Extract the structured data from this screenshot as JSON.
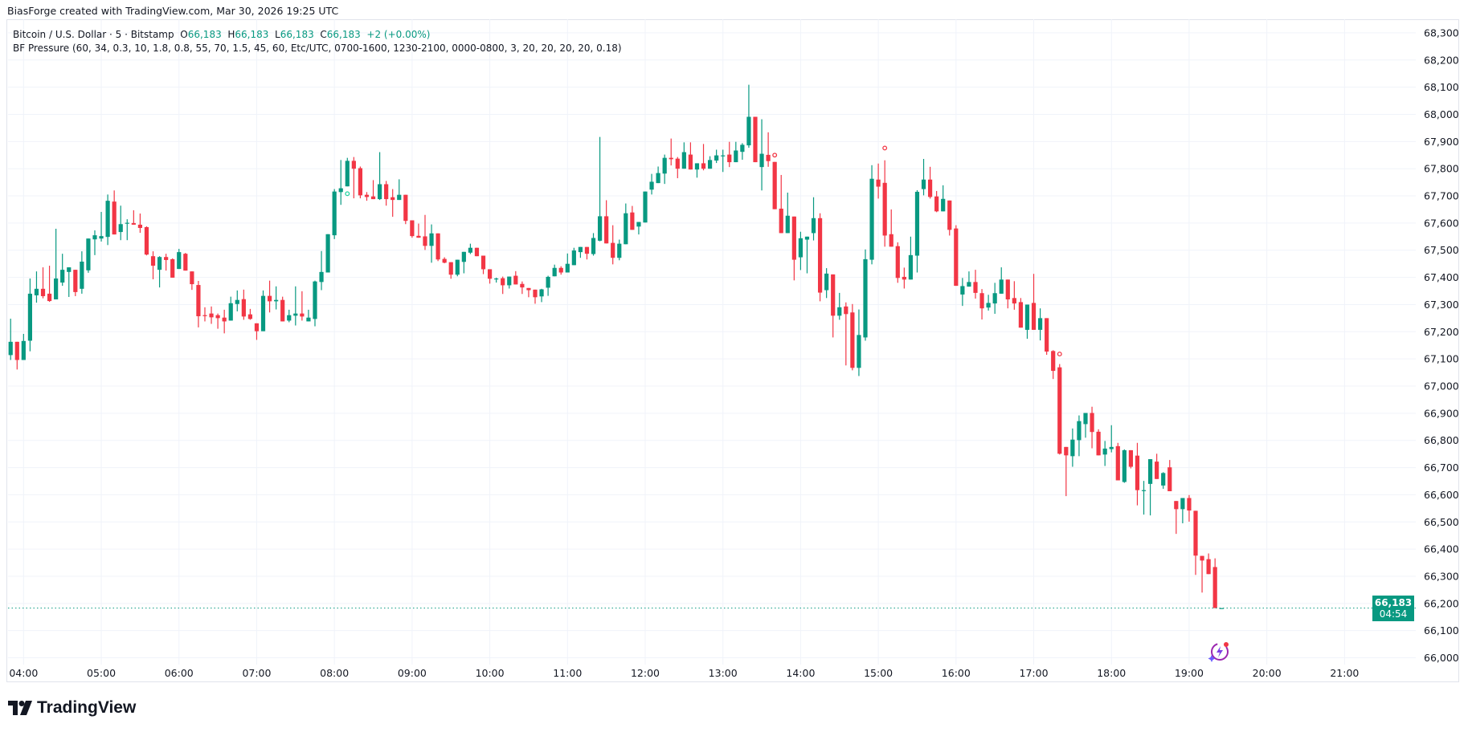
{
  "attribution": "BiasForge created with TradingView.com, Mar 30, 2026 19:25 UTC",
  "legend": {
    "symbol": "Bitcoin / U.S. Dollar · 5 · Bitstamp",
    "o_label": "O",
    "o_value": "66,183",
    "h_label": "H",
    "h_value": "66,183",
    "l_label": "L",
    "l_value": "66,183",
    "c_label": "C",
    "c_value": "66,183",
    "change": "+2 (+0.00%)",
    "indicator": "BF Pressure (60, 34, 0.3, 10, 1.8, 0.8, 55, 70, 1.5, 45, 60, Etc/UTC, 0700-1600, 1230-2100, 0000-0800, 3, 20, 20, 20, 20, 0.18)"
  },
  "last_price": {
    "label": "66,183",
    "countdown": "04:54",
    "value": 66183
  },
  "logo": {
    "text": "TradingView"
  },
  "colors": {
    "up": "#089981",
    "down": "#f23645",
    "grid": "#f0f3fa",
    "marker_up": "#22d3a0",
    "marker_down": "#f23645",
    "ai_icon": "#9c27b0"
  },
  "icons": {
    "ai_assistant": "lightning-sparkle-icon",
    "logo": "tradingview-logo-icon"
  },
  "chart_data": {
    "type": "candlestick",
    "title": "Bitcoin / U.S. Dollar · 5 · Bitstamp",
    "interval_minutes": 5,
    "grid": true,
    "y_range": [
      65975,
      68350
    ],
    "x_range": [
      "03:48",
      "21:55"
    ],
    "y_ticks": [
      "66,000",
      "66,100",
      "66,200",
      "66,300",
      "66,400",
      "66,500",
      "66,600",
      "66,700",
      "66,800",
      "66,900",
      "67,000",
      "67,100",
      "67,200",
      "67,300",
      "67,400",
      "67,500",
      "67,600",
      "67,700",
      "67,800",
      "67,900",
      "68,000",
      "68,100",
      "68,200",
      "68,300"
    ],
    "x_ticks": [
      "04:00",
      "05:00",
      "06:00",
      "07:00",
      "08:00",
      "09:00",
      "10:00",
      "11:00",
      "12:00",
      "13:00",
      "14:00",
      "15:00",
      "16:00",
      "17:00",
      "18:00",
      "19:00",
      "20:00",
      "21:00"
    ],
    "candle_fields": [
      "time",
      "open",
      "high",
      "low",
      "close"
    ],
    "candles": [
      [
        "03:50",
        67114,
        67248,
        67096,
        67163
      ],
      [
        "03:55",
        67163,
        67163,
        67061,
        67096
      ],
      [
        "04:00",
        67096,
        67192,
        67096,
        67166
      ],
      [
        "04:05",
        67167,
        67396,
        67128,
        67340
      ],
      [
        "04:10",
        67334,
        67422,
        67307,
        67358
      ],
      [
        "04:15",
        67358,
        67437,
        67323,
        67331
      ],
      [
        "04:20",
        67340,
        67443,
        67310,
        67313
      ],
      [
        "04:25",
        67319,
        67579,
        67319,
        67396
      ],
      [
        "04:30",
        67381,
        67487,
        67369,
        67428
      ],
      [
        "04:35",
        67420,
        67437,
        67328,
        67437
      ],
      [
        "04:40",
        67428,
        67428,
        67331,
        67346
      ],
      [
        "04:45",
        67358,
        67496,
        67340,
        67458
      ],
      [
        "04:50",
        67426,
        67543,
        67417,
        67543
      ],
      [
        "04:55",
        67540,
        67573,
        67482,
        67555
      ],
      [
        "05:00",
        67543,
        67641,
        67532,
        67552
      ],
      [
        "05:05",
        67549,
        67705,
        67519,
        67682
      ],
      [
        "05:10",
        67679,
        67720,
        67558,
        67558
      ],
      [
        "05:15",
        67567,
        67664,
        67537,
        67596
      ],
      [
        "05:20",
        67598,
        67614,
        67537,
        67601
      ],
      [
        "05:25",
        67600,
        67647,
        67594,
        67594
      ],
      [
        "05:30",
        67594,
        67635,
        67564,
        67582
      ],
      [
        "05:35",
        67585,
        67588,
        67481,
        67484
      ],
      [
        "05:40",
        67478,
        67496,
        67393,
        67443
      ],
      [
        "05:45",
        67428,
        67478,
        67363,
        67475
      ],
      [
        "05:50",
        67475,
        67487,
        67425,
        67464
      ],
      [
        "05:55",
        67467,
        67470,
        67399,
        67399
      ],
      [
        "06:00",
        67431,
        67505,
        67431,
        67493
      ],
      [
        "06:05",
        67487,
        67490,
        67425,
        67425
      ],
      [
        "06:10",
        67422,
        67422,
        67354,
        67375
      ],
      [
        "06:15",
        67372,
        67387,
        67216,
        67257
      ],
      [
        "06:20",
        67261,
        67290,
        67238,
        67259
      ],
      [
        "06:25",
        67267,
        67293,
        67229,
        67253
      ],
      [
        "06:30",
        67261,
        67267,
        67211,
        67250
      ],
      [
        "06:35",
        67252,
        67281,
        67194,
        67238
      ],
      [
        "06:40",
        67241,
        67329,
        67241,
        67305
      ],
      [
        "06:45",
        67302,
        67352,
        67275,
        67317
      ],
      [
        "06:50",
        67320,
        67355,
        67244,
        67256
      ],
      [
        "06:55",
        67264,
        67284,
        67244,
        67247
      ],
      [
        "07:00",
        67231,
        67231,
        67170,
        67202
      ],
      [
        "07:05",
        67202,
        67352,
        67202,
        67332
      ],
      [
        "07:10",
        67332,
        67388,
        67271,
        67312
      ],
      [
        "07:15",
        67312,
        67367,
        67282,
        67317
      ],
      [
        "07:20",
        67317,
        67329,
        67238,
        67238
      ],
      [
        "07:25",
        67241,
        67281,
        67235,
        67261
      ],
      [
        "07:30",
        67259,
        67367,
        67223,
        67267
      ],
      [
        "07:35",
        67267,
        67349,
        67241,
        67256
      ],
      [
        "07:40",
        67238,
        67281,
        67238,
        67252
      ],
      [
        "07:45",
        67247,
        67388,
        67220,
        67385
      ],
      [
        "07:50",
        67383,
        67497,
        67353,
        67420
      ],
      [
        "07:55",
        67418,
        67559,
        67418,
        67559
      ],
      [
        "08:00",
        67555,
        67725,
        67541,
        67716
      ],
      [
        "08:05",
        67714,
        67832,
        67667,
        67728
      ],
      [
        "08:10",
        67735,
        67840,
        67735,
        67829
      ],
      [
        "08:15",
        67829,
        67843,
        67691,
        67800
      ],
      [
        "08:20",
        67802,
        67808,
        67691,
        67702
      ],
      [
        "08:25",
        67704,
        67714,
        67682,
        67696
      ],
      [
        "08:30",
        67698,
        67758,
        67688,
        67688
      ],
      [
        "08:35",
        67688,
        67861,
        67685,
        67743
      ],
      [
        "08:40",
        67743,
        67755,
        67664,
        67688
      ],
      [
        "08:45",
        67695,
        67725,
        67623,
        67685
      ],
      [
        "08:50",
        67685,
        67761,
        67685,
        67704
      ],
      [
        "08:55",
        67704,
        67704,
        67596,
        67608
      ],
      [
        "09:00",
        67610,
        67610,
        67546,
        67552
      ],
      [
        "09:05",
        67553,
        67598,
        67546,
        67546
      ],
      [
        "09:10",
        67551,
        67630,
        67501,
        67516
      ],
      [
        "09:15",
        67516,
        67595,
        67454,
        67562
      ],
      [
        "09:20",
        67562,
        67562,
        67460,
        67466
      ],
      [
        "09:25",
        67468,
        67474,
        67452,
        67454
      ],
      [
        "09:30",
        67456,
        67456,
        67395,
        67410
      ],
      [
        "09:35",
        67410,
        67465,
        67404,
        67465
      ],
      [
        "09:40",
        67457,
        67494,
        67415,
        67494
      ],
      [
        "09:45",
        67491,
        67524,
        67486,
        67509
      ],
      [
        "09:50",
        67509,
        67509,
        67478,
        67478
      ],
      [
        "09:55",
        67480,
        67480,
        67412,
        67430
      ],
      [
        "10:00",
        67430,
        67430,
        67377,
        67395
      ],
      [
        "10:05",
        67394,
        67399,
        67381,
        67396
      ],
      [
        "10:10",
        67397,
        67403,
        67339,
        67371
      ],
      [
        "10:15",
        67371,
        67403,
        67359,
        67403
      ],
      [
        "10:20",
        67406,
        67423,
        67374,
        67374
      ],
      [
        "10:25",
        67376,
        67385,
        67339,
        67363
      ],
      [
        "10:30",
        67361,
        67361,
        67327,
        67353
      ],
      [
        "10:35",
        67355,
        67355,
        67303,
        67327
      ],
      [
        "10:40",
        67330,
        67358,
        67309,
        67356
      ],
      [
        "10:45",
        67362,
        67406,
        67332,
        67402
      ],
      [
        "10:50",
        67404,
        67447,
        67404,
        67435
      ],
      [
        "10:55",
        67435,
        67441,
        67410,
        67418
      ],
      [
        "11:00",
        67418,
        67488,
        67418,
        67450
      ],
      [
        "11:05",
        67445,
        67509,
        67445,
        67499
      ],
      [
        "11:10",
        67493,
        67512,
        67472,
        67512
      ],
      [
        "11:15",
        67512,
        67512,
        67466,
        67487
      ],
      [
        "11:20",
        67486,
        67563,
        67480,
        67545
      ],
      [
        "11:25",
        67535,
        67917,
        67533,
        67625
      ],
      [
        "11:30",
        67625,
        67684,
        67525,
        67525
      ],
      [
        "11:35",
        67527,
        67592,
        67448,
        67472
      ],
      [
        "11:40",
        67472,
        67539,
        67463,
        67524
      ],
      [
        "11:45",
        67522,
        67672,
        67522,
        67636
      ],
      [
        "11:50",
        67639,
        67663,
        67575,
        67575
      ],
      [
        "11:55",
        67587,
        67604,
        67558,
        67604
      ],
      [
        "12:00",
        67602,
        67716,
        67602,
        67716
      ],
      [
        "12:05",
        67723,
        67781,
        67705,
        67752
      ],
      [
        "12:10",
        67747,
        67808,
        67747,
        67784
      ],
      [
        "12:15",
        67782,
        67852,
        67744,
        67840
      ],
      [
        "12:20",
        67840,
        67911,
        67812,
        67835
      ],
      [
        "12:25",
        67837,
        67843,
        67765,
        67800
      ],
      [
        "12:30",
        67800,
        67897,
        67800,
        67861
      ],
      [
        "12:35",
        67852,
        67897,
        67797,
        67797
      ],
      [
        "12:40",
        67797,
        67820,
        67767,
        67820
      ],
      [
        "12:45",
        67820,
        67891,
        67794,
        67800
      ],
      [
        "12:50",
        67800,
        67846,
        67800,
        67832
      ],
      [
        "12:55",
        67830,
        67870,
        67821,
        67849
      ],
      [
        "13:00",
        67847,
        67870,
        67788,
        67849
      ],
      [
        "13:05",
        67852,
        67899,
        67806,
        67824
      ],
      [
        "13:10",
        67824,
        67899,
        67824,
        67867
      ],
      [
        "13:15",
        67862,
        67894,
        67833,
        67888
      ],
      [
        "13:20",
        67886,
        68109,
        67877,
        67991
      ],
      [
        "13:25",
        67991,
        67991,
        67824,
        67824
      ],
      [
        "13:30",
        67806,
        67982,
        67720,
        67855
      ],
      [
        "13:35",
        67851,
        67934,
        67807,
        67828
      ],
      [
        "13:40",
        67825,
        67825,
        67651,
        67651
      ],
      [
        "13:45",
        67653,
        67777,
        67563,
        67563
      ],
      [
        "13:50",
        67563,
        67712,
        67563,
        67627
      ],
      [
        "13:55",
        67624,
        67624,
        67389,
        67465
      ],
      [
        "14:00",
        67474,
        67568,
        67427,
        67544
      ],
      [
        "14:05",
        67539,
        67550,
        67415,
        67550
      ],
      [
        "14:10",
        67563,
        67695,
        67536,
        67618
      ],
      [
        "14:15",
        67618,
        67636,
        67312,
        67344
      ],
      [
        "14:20",
        67353,
        67434,
        67324,
        67414
      ],
      [
        "14:25",
        67411,
        67411,
        67179,
        67259
      ],
      [
        "14:30",
        67259,
        67343,
        67244,
        67290
      ],
      [
        "14:35",
        67293,
        67308,
        67076,
        67265
      ],
      [
        "14:40",
        67271,
        67302,
        67058,
        67067
      ],
      [
        "14:45",
        67067,
        67282,
        67037,
        67188
      ],
      [
        "14:50",
        67179,
        67503,
        67167,
        67467
      ],
      [
        "14:55",
        67465,
        67813,
        67448,
        67763
      ],
      [
        "15:00",
        67760,
        67819,
        67690,
        67734
      ],
      [
        "15:05",
        67748,
        67831,
        67513,
        67554
      ],
      [
        "15:10",
        67559,
        67650,
        67513,
        67513
      ],
      [
        "15:15",
        67515,
        67529,
        67380,
        67398
      ],
      [
        "15:20",
        67402,
        67436,
        67359,
        67392
      ],
      [
        "15:25",
        67392,
        67550,
        67392,
        67482
      ],
      [
        "15:30",
        67480,
        67721,
        67418,
        67715
      ],
      [
        "15:35",
        67725,
        67836,
        67702,
        67760
      ],
      [
        "15:40",
        67760,
        67807,
        67690,
        67696
      ],
      [
        "15:45",
        67698,
        67718,
        67640,
        67643
      ],
      [
        "15:50",
        67643,
        67739,
        67643,
        67689
      ],
      [
        "15:55",
        67683,
        67683,
        67554,
        67575
      ],
      [
        "16:00",
        67580,
        67592,
        67369,
        67369
      ],
      [
        "16:05",
        67337,
        67398,
        67295,
        67368
      ],
      [
        "16:10",
        67366,
        67422,
        67366,
        67383
      ],
      [
        "16:15",
        67383,
        67428,
        67322,
        67343
      ],
      [
        "16:20",
        67342,
        67357,
        67245,
        67286
      ],
      [
        "16:25",
        67289,
        67336,
        67278,
        67306
      ],
      [
        "16:30",
        67304,
        67380,
        67266,
        67342
      ],
      [
        "16:35",
        67340,
        67437,
        67340,
        67392
      ],
      [
        "16:40",
        67392,
        67392,
        67286,
        67319
      ],
      [
        "16:45",
        67324,
        67386,
        67281,
        67304
      ],
      [
        "16:50",
        67309,
        67324,
        67215,
        67215
      ],
      [
        "16:55",
        67207,
        67300,
        67174,
        67300
      ],
      [
        "17:00",
        67306,
        67413,
        67207,
        67207
      ],
      [
        "17:05",
        67207,
        67286,
        67168,
        67250
      ],
      [
        "17:10",
        67250,
        67250,
        67115,
        67127
      ],
      [
        "17:15",
        67129,
        67132,
        67026,
        67056
      ],
      [
        "17:20",
        67069,
        67081,
        66748,
        66751
      ],
      [
        "17:25",
        66776,
        66776,
        66595,
        66745
      ],
      [
        "17:30",
        66742,
        66844,
        66703,
        66803
      ],
      [
        "17:35",
        66801,
        66892,
        66742,
        66871
      ],
      [
        "17:40",
        66860,
        66901,
        66810,
        66901
      ],
      [
        "17:45",
        66901,
        66924,
        66771,
        66831
      ],
      [
        "17:50",
        66832,
        66841,
        66745,
        66745
      ],
      [
        "17:55",
        66748,
        66798,
        66706,
        66770
      ],
      [
        "18:00",
        66768,
        66856,
        66756,
        66776
      ],
      [
        "18:05",
        66779,
        66791,
        66653,
        66653
      ],
      [
        "18:10",
        66647,
        66767,
        66644,
        66764
      ],
      [
        "18:15",
        66764,
        66764,
        66697,
        66703
      ],
      [
        "18:20",
        66744,
        66791,
        66561,
        66617
      ],
      [
        "18:25",
        66615,
        66651,
        66527,
        66617
      ],
      [
        "18:30",
        66640,
        66731,
        66524,
        66731
      ],
      [
        "18:35",
        66722,
        66751,
        66658,
        66658
      ],
      [
        "18:40",
        66634,
        66683,
        66622,
        66680
      ],
      [
        "18:45",
        66701,
        66728,
        66613,
        66613
      ],
      [
        "18:50",
        66577,
        66577,
        66456,
        66547
      ],
      [
        "18:55",
        66547,
        66588,
        66495,
        66588
      ],
      [
        "19:00",
        66588,
        66599,
        66501,
        66542
      ],
      [
        "19:05",
        66541,
        66541,
        66305,
        66376
      ],
      [
        "19:10",
        66375,
        66375,
        66240,
        66358
      ],
      [
        "19:15",
        66363,
        66384,
        66308,
        66308
      ],
      [
        "19:20",
        66334,
        66366,
        66183,
        66183
      ],
      [
        "19:25",
        66183,
        66183,
        66183,
        66183
      ]
    ],
    "markers": [
      {
        "time": "08:10",
        "price": 67708,
        "type": "up"
      },
      {
        "time": "13:40",
        "price": 67850,
        "type": "down"
      },
      {
        "time": "15:05",
        "price": 67876,
        "type": "down"
      },
      {
        "time": "17:20",
        "price": 67118,
        "type": "down"
      }
    ]
  }
}
